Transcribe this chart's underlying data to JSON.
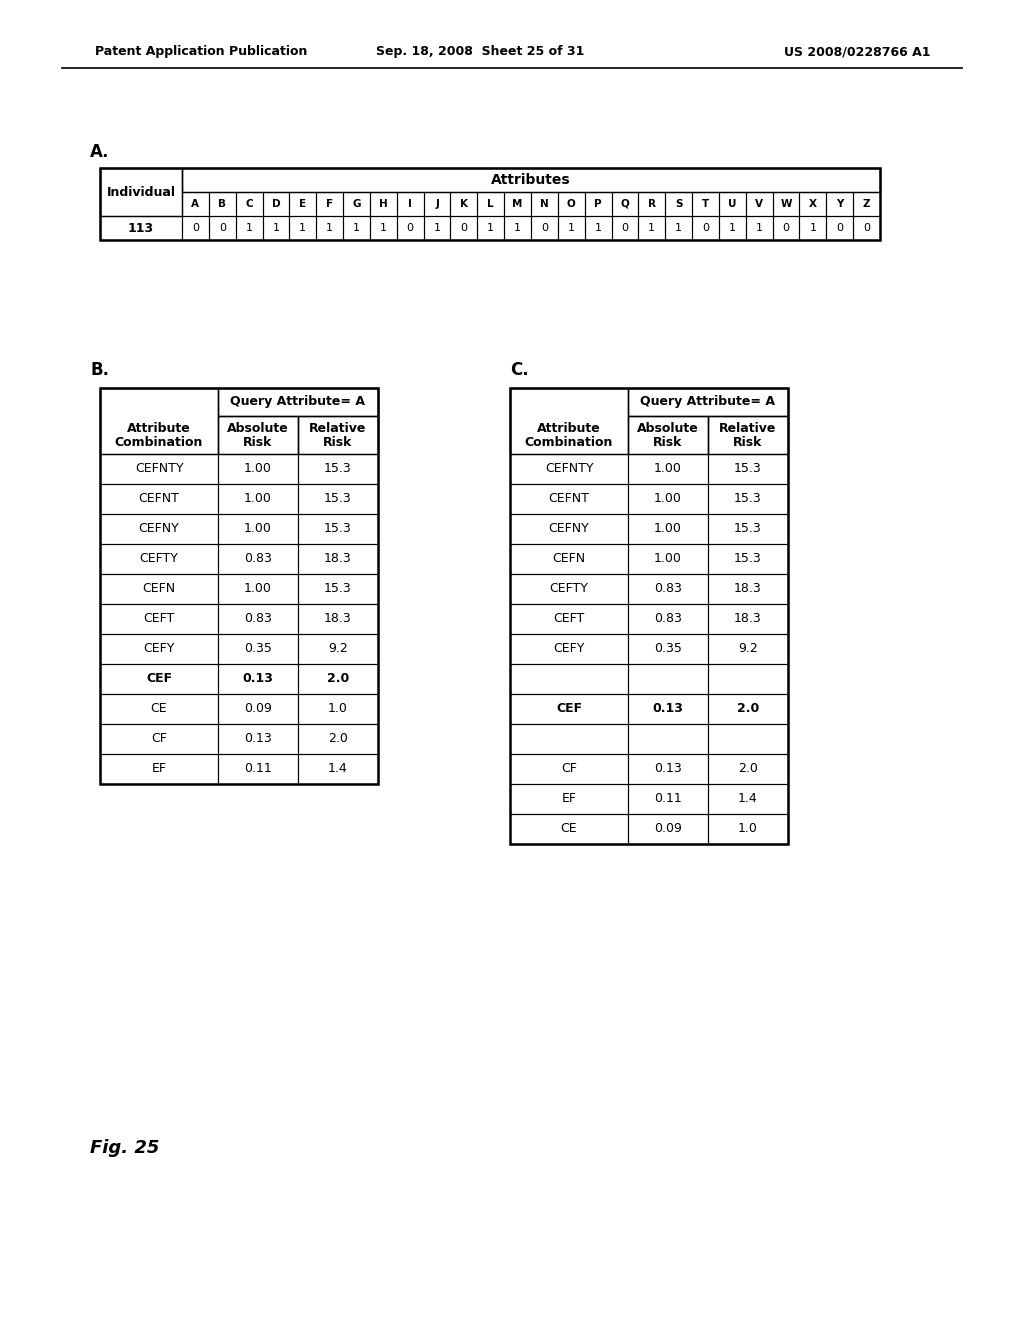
{
  "header_left": "Patent Application Publication",
  "header_center": "Sep. 18, 2008  Sheet 25 of 31",
  "header_right": "US 2008/0228766 A1",
  "section_a_label": "A.",
  "section_b_label": "B.",
  "section_c_label": "C.",
  "fig_label": "Fig. 25",
  "table_a": {
    "individual_label": "Individual",
    "attributes_label": "Attributes",
    "col_headers": [
      "A",
      "B",
      "C",
      "D",
      "E",
      "F",
      "G",
      "H",
      "I",
      "J",
      "K",
      "L",
      "M",
      "N",
      "O",
      "P",
      "Q",
      "R",
      "S",
      "T",
      "U",
      "V",
      "W",
      "X",
      "Y",
      "Z"
    ],
    "rows": [
      {
        "id": "113",
        "values": [
          0,
          0,
          1,
          1,
          1,
          1,
          1,
          1,
          0,
          1,
          0,
          1,
          1,
          0,
          1,
          1,
          0,
          1,
          1,
          0,
          1,
          1,
          0,
          1,
          0,
          0
        ]
      }
    ]
  },
  "table_b": {
    "header1": "Query Attribute= A",
    "col1_label": "Attribute\nCombination",
    "col2_label": "Absolute\nRisk",
    "col3_label": "Relative\nRisk",
    "rows": [
      {
        "combo": "CEFNTY",
        "abs": "1.00",
        "rel": "15.3",
        "bold": false
      },
      {
        "combo": "CEFNT",
        "abs": "1.00",
        "rel": "15.3",
        "bold": false
      },
      {
        "combo": "CEFNY",
        "abs": "1.00",
        "rel": "15.3",
        "bold": false
      },
      {
        "combo": "CEFTY",
        "abs": "0.83",
        "rel": "18.3",
        "bold": false
      },
      {
        "combo": "CEFN",
        "abs": "1.00",
        "rel": "15.3",
        "bold": false
      },
      {
        "combo": "CEFT",
        "abs": "0.83",
        "rel": "18.3",
        "bold": false
      },
      {
        "combo": "CEFY",
        "abs": "0.35",
        "rel": "9.2",
        "bold": false
      },
      {
        "combo": "CEF",
        "abs": "0.13",
        "rel": "2.0",
        "bold": true
      },
      {
        "combo": "CE",
        "abs": "0.09",
        "rel": "1.0",
        "bold": false
      },
      {
        "combo": "CF",
        "abs": "0.13",
        "rel": "2.0",
        "bold": false
      },
      {
        "combo": "EF",
        "abs": "0.11",
        "rel": "1.4",
        "bold": false
      }
    ]
  },
  "table_c": {
    "header1": "Query Attribute= A",
    "col1_label": "Attribute\nCombination",
    "col2_label": "Absolute\nRisk",
    "col3_label": "Relative\nRisk",
    "rows": [
      {
        "combo": "CEFNTY",
        "abs": "1.00",
        "rel": "15.3",
        "bold": false
      },
      {
        "combo": "CEFNT",
        "abs": "1.00",
        "rel": "15.3",
        "bold": false
      },
      {
        "combo": "CEFNY",
        "abs": "1.00",
        "rel": "15.3",
        "bold": false
      },
      {
        "combo": "CEFN",
        "abs": "1.00",
        "rel": "15.3",
        "bold": false
      },
      {
        "combo": "CEFTY",
        "abs": "0.83",
        "rel": "18.3",
        "bold": false
      },
      {
        "combo": "CEFT",
        "abs": "0.83",
        "rel": "18.3",
        "bold": false
      },
      {
        "combo": "CEFY",
        "abs": "0.35",
        "rel": "9.2",
        "bold": false
      },
      {
        "combo": "",
        "abs": "",
        "rel": "",
        "bold": false
      },
      {
        "combo": "CEF",
        "abs": "0.13",
        "rel": "2.0",
        "bold": true
      },
      {
        "combo": "",
        "abs": "",
        "rel": "",
        "bold": false
      },
      {
        "combo": "CF",
        "abs": "0.13",
        "rel": "2.0",
        "bold": false
      },
      {
        "combo": "EF",
        "abs": "0.11",
        "rel": "1.4",
        "bold": false
      },
      {
        "combo": "CE",
        "abs": "0.09",
        "rel": "1.0",
        "bold": false
      }
    ]
  }
}
